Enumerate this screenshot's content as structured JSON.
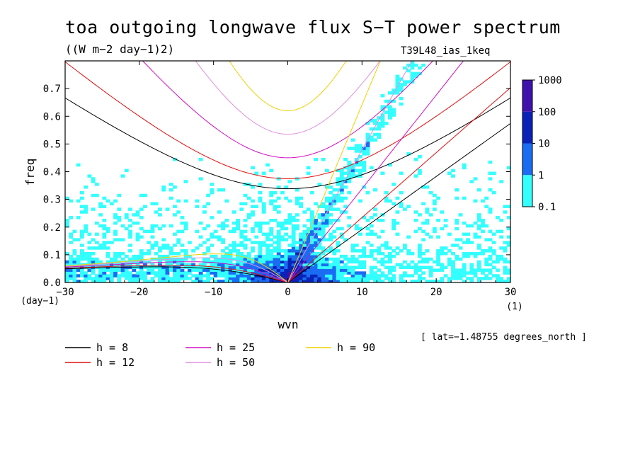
{
  "title": "toa outgoing longwave flux S−T power spectrum",
  "units": "((W m−2 day−1)2)",
  "run_label": "T39L48_ias_1keq",
  "lat_note": "[ lat=−1.48755 degrees_north ]",
  "chart_data": {
    "type": "heatmap",
    "title": "toa outgoing longwave flux S−T power spectrum",
    "xlabel": "wvn",
    "ylabel": "freq",
    "x_unit": "(1)",
    "y_unit": "(day−1)",
    "xlim": [
      -30,
      30
    ],
    "ylim": [
      0.0,
      0.8
    ],
    "x_ticks": [
      -30,
      -20,
      -10,
      0,
      10,
      20,
      30
    ],
    "x_tick_labels": [
      "−30",
      "−20",
      "−10",
      "0",
      "10",
      "20",
      "30"
    ],
    "y_ticks": [
      0.0,
      0.1,
      0.2,
      0.3,
      0.4,
      0.5,
      0.6,
      0.7
    ],
    "y_tick_labels": [
      "0.0",
      "0.1",
      "0.2",
      "0.3",
      "0.4",
      "0.5",
      "0.6",
      "0.7"
    ],
    "colorbar": {
      "levels": [
        0.1,
        1,
        10,
        100,
        1000
      ],
      "labels": [
        "0.1",
        "1",
        "10",
        "100",
        "1000"
      ],
      "colors": [
        "#33ffff",
        "#1a6cf2",
        "#0a22b8",
        "#3f12ae"
      ]
    },
    "legend": [
      {
        "label": "h =  8",
        "h": 8,
        "color": "#000000"
      },
      {
        "label": "h = 12",
        "h": 12,
        "color": "#e01010"
      },
      {
        "label": "h = 25",
        "h": 25,
        "color": "#d010c0"
      },
      {
        "label": "h = 50",
        "h": 50,
        "color": "#e090e0"
      },
      {
        "label": "h = 90",
        "h": 90,
        "color": "#f0d000"
      }
    ]
  }
}
